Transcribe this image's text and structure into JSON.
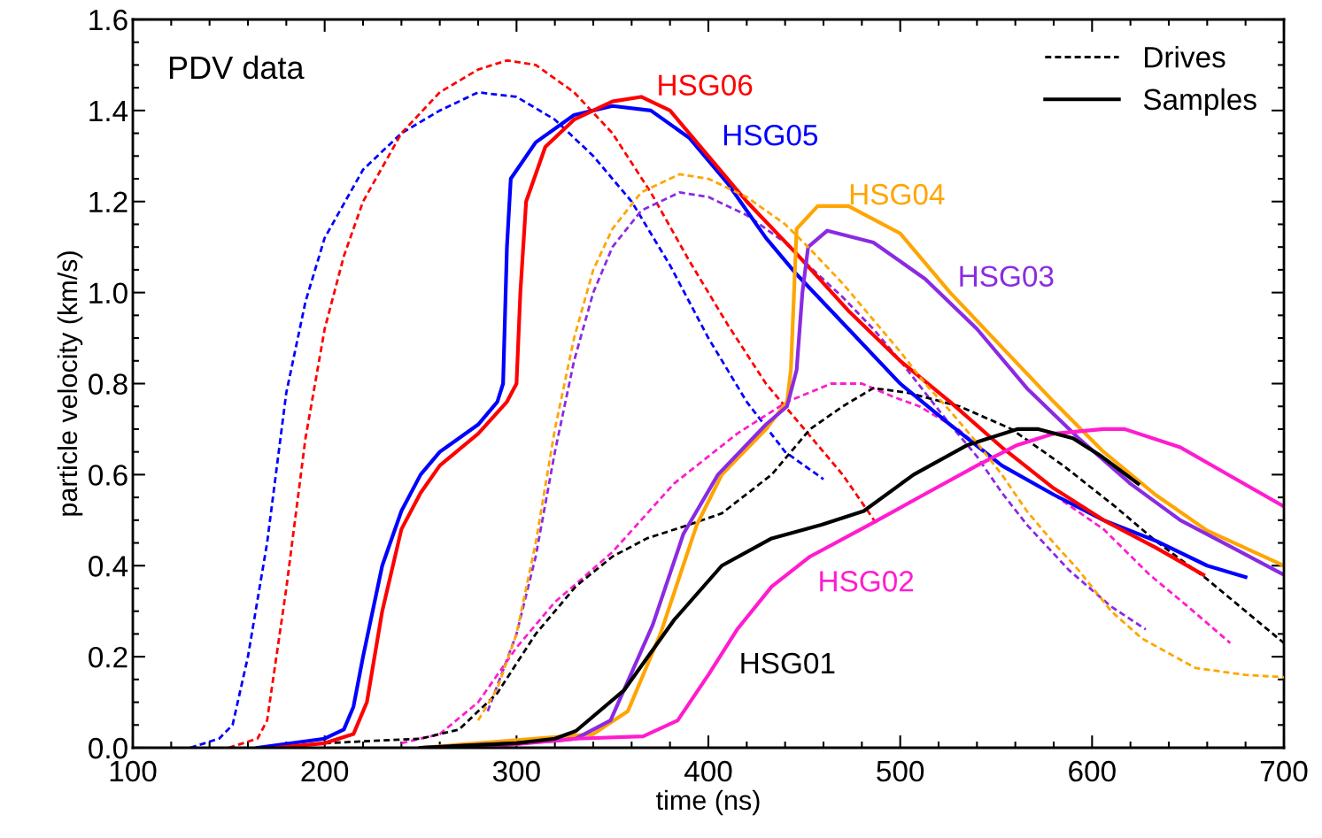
{
  "chart_data": {
    "type": "line",
    "xlabel": "time (ns)",
    "ylabel": "particle velocity (km/s)",
    "annotations": [
      "PDV data",
      "Drives",
      "Samples"
    ],
    "legend": "top right",
    "grid": false,
    "marker": "none",
    "xlim": [
      100,
      700
    ],
    "xticks": [
      100,
      200,
      300,
      400,
      500,
      600,
      700
    ],
    "ylim": [
      0,
      1.6
    ],
    "yticks": [
      {
        "value": 0,
        "label": "0.0"
      },
      {
        "value": 0.2,
        "label": "0.2"
      },
      {
        "value": 0.4,
        "label": "0.4"
      },
      {
        "value": 0.6,
        "label": "0.6"
      },
      {
        "value": 0.8,
        "label": "0.8"
      },
      {
        "value": 1.0,
        "label": "1.0"
      },
      {
        "value": 1.2,
        "label": "1.2"
      },
      {
        "value": 1.4,
        "label": "1.4"
      },
      {
        "value": 1.6,
        "label": "1.6"
      }
    ],
    "series": [
      {
        "color": "#0000ff",
        "line_style": "dashed",
        "x": [
          130,
          145,
          152,
          160,
          170,
          180,
          190,
          200,
          220,
          240,
          260,
          280,
          300,
          320,
          340,
          360,
          380,
          400,
          420,
          440,
          460
        ],
        "values": [
          0,
          0.02,
          0.05,
          0.2,
          0.45,
          0.78,
          0.98,
          1.12,
          1.27,
          1.35,
          1.4,
          1.44,
          1.43,
          1.38,
          1.3,
          1.2,
          1.06,
          0.9,
          0.76,
          0.65,
          0.59
        ]
      },
      {
        "color": "#ff0000",
        "line_style": "dashed",
        "x": [
          150,
          165,
          170,
          180,
          190,
          200,
          210,
          220,
          240,
          260,
          280,
          295,
          310,
          330,
          350,
          370,
          390,
          410,
          430,
          450,
          470,
          488
        ],
        "values": [
          0,
          0.02,
          0.06,
          0.35,
          0.68,
          0.92,
          1.08,
          1.2,
          1.35,
          1.44,
          1.49,
          1.51,
          1.5,
          1.44,
          1.35,
          1.22,
          1.07,
          0.93,
          0.8,
          0.7,
          0.6,
          0.49
        ]
      },
      {
        "color": "#ffa500",
        "line_style": "dashed",
        "x": [
          280,
          290,
          300,
          310,
          320,
          330,
          340,
          350,
          365,
          385,
          400,
          420,
          440,
          452,
          470,
          486,
          500,
          513,
          526,
          540,
          553,
          566,
          580,
          593,
          610,
          626,
          654,
          680,
          700
        ],
        "values": [
          0.06,
          0.13,
          0.25,
          0.45,
          0.7,
          0.9,
          1.05,
          1.14,
          1.22,
          1.26,
          1.25,
          1.21,
          1.15,
          1.1,
          1.02,
          0.94,
          0.87,
          0.8,
          0.74,
          0.67,
          0.6,
          0.52,
          0.45,
          0.39,
          0.3,
          0.24,
          0.175,
          0.16,
          0.155
        ]
      },
      {
        "color": "#8a2be2",
        "line_style": "dashed",
        "x": [
          285,
          300,
          310,
          320,
          330,
          340,
          350,
          365,
          385,
          400,
          420,
          440,
          452,
          470,
          486,
          500,
          513,
          526,
          540,
          553,
          566,
          588,
          610,
          628
        ],
        "values": [
          0.08,
          0.25,
          0.42,
          0.65,
          0.85,
          1.0,
          1.1,
          1.18,
          1.22,
          1.21,
          1.17,
          1.11,
          1.06,
          0.99,
          0.92,
          0.85,
          0.78,
          0.71,
          0.64,
          0.56,
          0.49,
          0.39,
          0.31,
          0.26
        ]
      },
      {
        "color": "#ff1ccf",
        "line_style": "dashed",
        "x": [
          240,
          260,
          280,
          300,
          320,
          331,
          350,
          382,
          400,
          415,
          441,
          464,
          480,
          497,
          510,
          530,
          553,
          580,
          606,
          630,
          650,
          672
        ],
        "values": [
          0.01,
          0.03,
          0.1,
          0.22,
          0.32,
          0.36,
          0.43,
          0.58,
          0.64,
          0.69,
          0.76,
          0.8,
          0.8,
          0.77,
          0.75,
          0.7,
          0.62,
          0.556,
          0.48,
          0.38,
          0.31,
          0.23
        ]
      },
      {
        "color": "#000000",
        "line_style": "dashed",
        "x": [
          200,
          250,
          270,
          290,
          310,
          331,
          350,
          368,
          390,
          407,
          433,
          453,
          470,
          486,
          504,
          531,
          558,
          585,
          612,
          633,
          660,
          680,
          700
        ],
        "values": [
          0.01,
          0.02,
          0.04,
          0.12,
          0.25,
          0.355,
          0.42,
          0.46,
          0.49,
          0.515,
          0.6,
          0.7,
          0.75,
          0.79,
          0.78,
          0.75,
          0.7,
          0.62,
          0.53,
          0.455,
          0.37,
          0.3,
          0.23
        ]
      },
      {
        "name": "HSG05",
        "color": "#0000ff",
        "line_style": "solid",
        "x": [
          165,
          200,
          210,
          215,
          220,
          230,
          240,
          250,
          260,
          280,
          290,
          293,
          295,
          297,
          310,
          330,
          350,
          370,
          390,
          410,
          430,
          446,
          473,
          500,
          526,
          553,
          580,
          606,
          633,
          660,
          680
        ],
        "values": [
          0,
          0.02,
          0.04,
          0.09,
          0.2,
          0.4,
          0.52,
          0.6,
          0.65,
          0.71,
          0.76,
          0.8,
          1.1,
          1.25,
          1.33,
          1.39,
          1.41,
          1.4,
          1.34,
          1.24,
          1.12,
          1.04,
          0.92,
          0.8,
          0.71,
          0.62,
          0.556,
          0.5,
          0.455,
          0.4,
          0.375
        ]
      },
      {
        "name": "HSG06",
        "color": "#ff0000",
        "line_style": "solid",
        "x": [
          175,
          200,
          215,
          222,
          230,
          240,
          250,
          260,
          280,
          295,
          300,
          302,
          305,
          315,
          330,
          350,
          365,
          380,
          400,
          420,
          446,
          473,
          500,
          526,
          553,
          580,
          606,
          633,
          658
        ],
        "values": [
          0,
          0.01,
          0.03,
          0.1,
          0.3,
          0.48,
          0.56,
          0.62,
          0.69,
          0.76,
          0.8,
          1.0,
          1.2,
          1.32,
          1.38,
          1.42,
          1.43,
          1.4,
          1.3,
          1.2,
          1.085,
          0.96,
          0.85,
          0.76,
          0.66,
          0.57,
          0.5,
          0.44,
          0.38
        ]
      },
      {
        "name": "HSG04",
        "color": "#ffa500",
        "line_style": "solid",
        "x": [
          250,
          340,
          358,
          375,
          394,
          407,
          430,
          441,
          443,
          446,
          457,
          473,
          500,
          526,
          553,
          580,
          606,
          633,
          660,
          700
        ],
        "values": [
          0,
          0.03,
          0.08,
          0.25,
          0.49,
          0.6,
          0.7,
          0.76,
          0.83,
          1.14,
          1.19,
          1.19,
          1.13,
          1.0,
          0.88,
          0.76,
          0.65,
          0.556,
          0.477,
          0.4
        ]
      },
      {
        "name": "HSG03",
        "color": "#8a2be2",
        "line_style": "solid",
        "x": [
          250,
          300,
          320,
          331,
          349,
          371,
          387,
          405,
          430,
          441,
          446,
          449,
          452,
          462,
          486,
          513,
          540,
          566,
          593,
          620,
          646,
          673,
          700
        ],
        "values": [
          0,
          0.01,
          0.015,
          0.02,
          0.06,
          0.27,
          0.47,
          0.6,
          0.71,
          0.75,
          0.83,
          1.0,
          1.1,
          1.136,
          1.11,
          1.03,
          0.92,
          0.79,
          0.68,
          0.58,
          0.5,
          0.44,
          0.38
        ]
      },
      {
        "name": "HSG02",
        "color": "#ff1ccf",
        "line_style": "solid",
        "x": [
          280,
          331,
          366,
          384,
          400,
          415,
          433,
          453,
          484,
          514,
          540,
          561,
          580,
          606,
          617,
          646,
          673,
          700
        ],
        "values": [
          0,
          0.02,
          0.025,
          0.06,
          0.16,
          0.26,
          0.354,
          0.42,
          0.49,
          0.56,
          0.62,
          0.665,
          0.69,
          0.7,
          0.7,
          0.66,
          0.595,
          0.53
        ]
      },
      {
        "name": "HSG01",
        "color": "#000000",
        "line_style": "solid",
        "x": [
          250,
          300,
          320,
          331,
          356,
          382,
          407,
          433,
          459,
          481,
          507,
          535,
          561,
          572,
          590,
          605,
          624
        ],
        "values": [
          0,
          0.01,
          0.02,
          0.037,
          0.126,
          0.28,
          0.4,
          0.46,
          0.49,
          0.52,
          0.6,
          0.665,
          0.7,
          0.7,
          0.68,
          0.64,
          0.58
        ]
      }
    ]
  }
}
